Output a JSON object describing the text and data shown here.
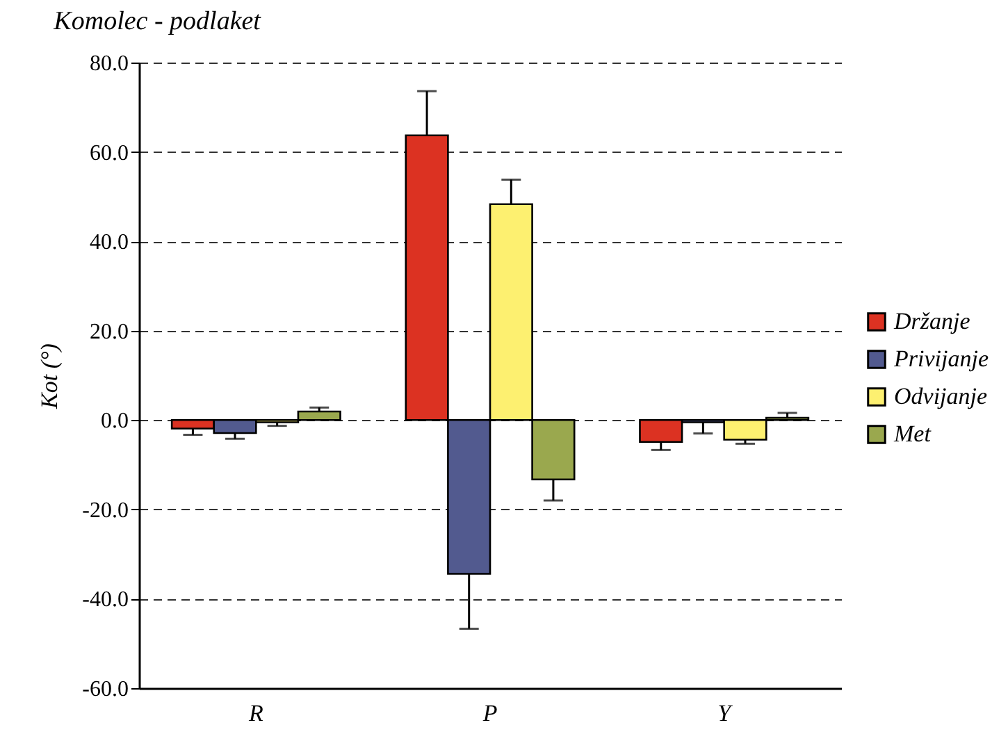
{
  "chart_data": {
    "type": "bar",
    "title": "Komolec - podlaket",
    "ylabel": "Kot (°)",
    "categories": [
      "R",
      "P",
      "Y"
    ],
    "series": [
      {
        "name": "Držanje",
        "color": "#dc3222",
        "values": [
          -1.9,
          63.7,
          -4.9
        ],
        "errors": [
          [
            -3.3,
            -1.9
          ],
          [
            63.7,
            73.6
          ],
          [
            -6.7,
            -4.9
          ]
        ]
      },
      {
        "name": "Privijanje",
        "color": "#525a8f",
        "values": [
          -2.9,
          -34.4,
          -0.5
        ],
        "errors": [
          [
            -4.2,
            -2.9
          ],
          [
            -46.7,
            -34.4
          ],
          [
            -3.0,
            -0.5
          ]
        ]
      },
      {
        "name": "Odvijanje",
        "color": "#fdf070",
        "values": [
          -0.5,
          48.3,
          -4.4
        ],
        "errors": [
          [
            -1.3,
            -0.5
          ],
          [
            48.3,
            53.8
          ],
          [
            -5.3,
            -4.4
          ]
        ]
      },
      {
        "name": "Met",
        "color": "#9aa84e",
        "values": [
          1.9,
          -13.3,
          0.5
        ],
        "errors": [
          [
            1.9,
            2.8
          ],
          [
            -18.0,
            -13.3
          ],
          [
            0.5,
            1.6
          ]
        ]
      }
    ],
    "ylim": [
      -60,
      80
    ],
    "yticks": [
      {
        "value": -60,
        "label": "-60.0"
      },
      {
        "value": -40,
        "label": "-40.0"
      },
      {
        "value": -20,
        "label": "-20.0"
      },
      {
        "value": 0,
        "label": "0.0"
      },
      {
        "value": 20,
        "label": "20.0"
      },
      {
        "value": 40,
        "label": "40.0"
      },
      {
        "value": 60,
        "label": "60.0"
      },
      {
        "value": 80,
        "label": "80.0"
      }
    ],
    "grid": "y",
    "legend": "right"
  }
}
